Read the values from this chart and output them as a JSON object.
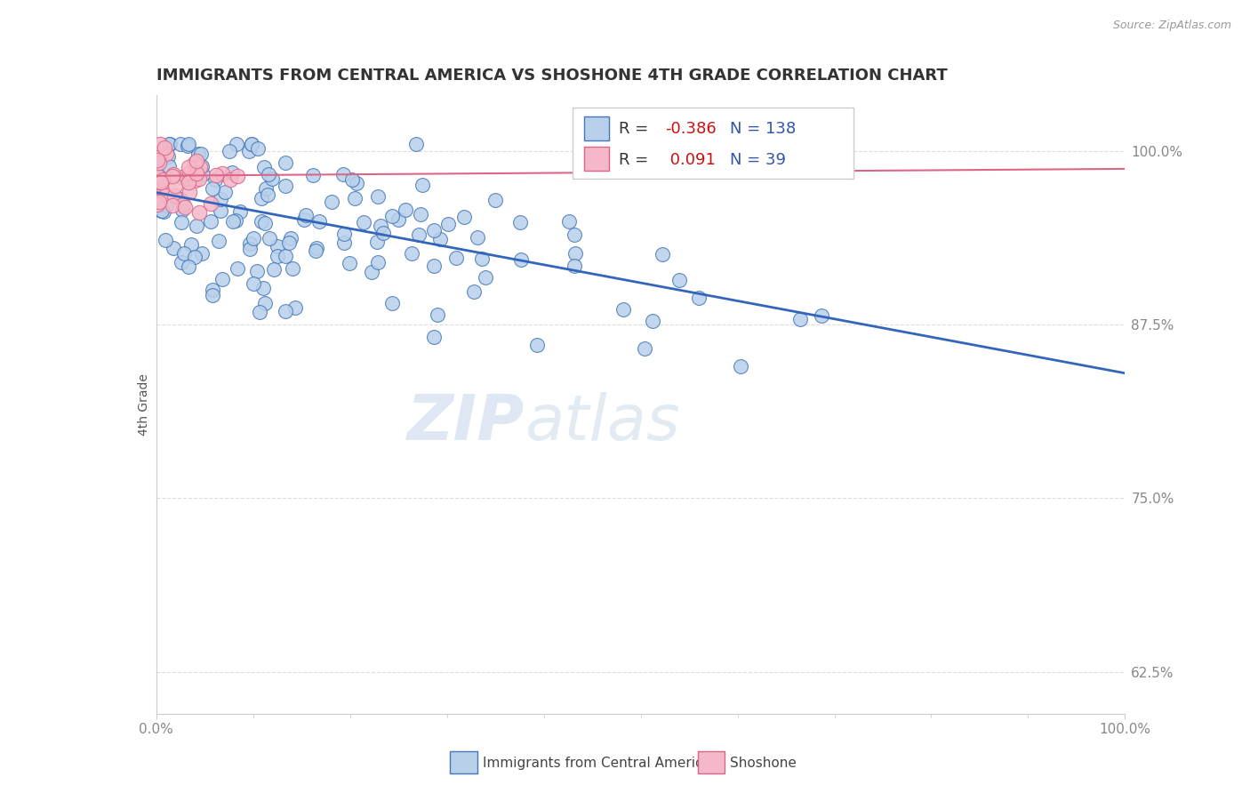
{
  "title": "IMMIGRANTS FROM CENTRAL AMERICA VS SHOSHONE 4TH GRADE CORRELATION CHART",
  "source": "Source: ZipAtlas.com",
  "ylabel": "4th Grade",
  "xlim": [
    0.0,
    1.0
  ],
  "ylim": [
    0.595,
    1.04
  ],
  "yticks": [
    0.625,
    0.75,
    0.875,
    1.0
  ],
  "ytick_labels": [
    "62.5%",
    "75.0%",
    "87.5%",
    "100.0%"
  ],
  "blue_R": -0.386,
  "blue_N": 138,
  "pink_R": 0.091,
  "pink_N": 39,
  "blue_face": "#b8d0ea",
  "blue_edge": "#4477bb",
  "blue_line": "#3366bb",
  "pink_face": "#f5b8c8",
  "pink_edge": "#dd6688",
  "pink_line": "#dd6688",
  "legend_R_color": "#cc1111",
  "legend_N_color": "#3355aa",
  "watermark_color": "#c8d8eb",
  "grid_color": "#dddddd",
  "title_color": "#333333",
  "tick_color": "#888888",
  "blue_trend_start_y": 0.97,
  "blue_trend_end_y": 0.84,
  "pink_trend_y": 0.982
}
